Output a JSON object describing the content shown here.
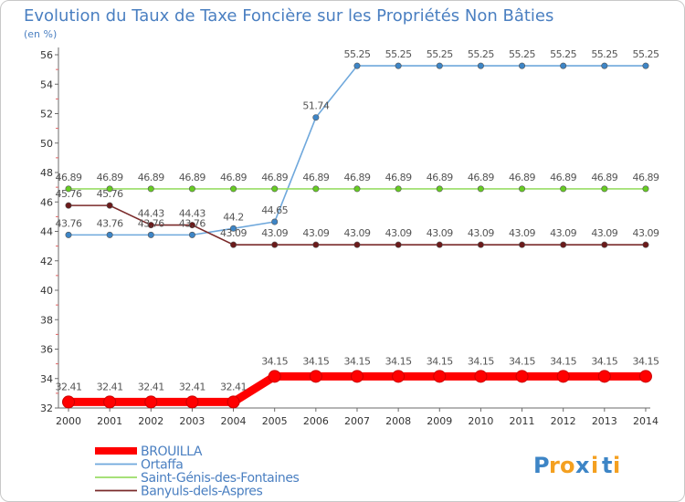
{
  "chart_data": {
    "type": "line",
    "title": "Evolution du Taux de Taxe Foncière sur les Propriétés Non Bâties",
    "subtitle": "(en %)",
    "xlabel": "",
    "ylabel": "",
    "ylim": [
      32,
      56
    ],
    "yticks": [
      32,
      34,
      36,
      38,
      40,
      42,
      44,
      46,
      48,
      50,
      52,
      54,
      56
    ],
    "categories": [
      "2000",
      "2001",
      "2002",
      "2003",
      "2004",
      "2005",
      "2006",
      "2007",
      "2008",
      "2009",
      "2010",
      "2011",
      "2012",
      "2013",
      "2014"
    ],
    "series": [
      {
        "name": "BROUILLA",
        "color": "#ff0000",
        "marker_color": "#ff0000",
        "highlight": true,
        "values": [
          32.41,
          32.41,
          32.41,
          32.41,
          32.41,
          34.15,
          34.15,
          34.15,
          34.15,
          34.15,
          34.15,
          34.15,
          34.15,
          34.15,
          34.15
        ],
        "labels": [
          "32.41",
          "32.41",
          "32.41",
          "32.41",
          "32.41",
          "34.15",
          "34.15",
          "34.15",
          "34.15",
          "34.15",
          "34.15",
          "34.15",
          "34.15",
          "34.15",
          "34.15"
        ]
      },
      {
        "name": "Ortaffa",
        "color": "#6fa8dc",
        "marker_color": "#3d85c6",
        "highlight": false,
        "values": [
          43.76,
          43.76,
          43.76,
          43.76,
          44.2,
          44.65,
          51.74,
          55.25,
          55.25,
          55.25,
          55.25,
          55.25,
          55.25,
          55.25,
          55.25
        ],
        "labels": [
          "43.76",
          "43.76",
          "43.76",
          "43.76",
          "44.2",
          "44.65",
          "51.74",
          "55.25",
          "55.25",
          "55.25",
          "55.25",
          "55.25",
          "55.25",
          "55.25",
          "55.25"
        ]
      },
      {
        "name": "Saint-Génis-des-Fontaines",
        "color": "#99dd66",
        "marker_color": "#66cc22",
        "highlight": false,
        "values": [
          46.89,
          46.89,
          46.89,
          46.89,
          46.89,
          46.89,
          46.89,
          46.89,
          46.89,
          46.89,
          46.89,
          46.89,
          46.89,
          46.89,
          46.89
        ],
        "labels": [
          "46.89",
          "46.89",
          "46.89",
          "46.89",
          "46.89",
          "46.89",
          "46.89",
          "46.89",
          "46.89",
          "46.89",
          "46.89",
          "46.89",
          "46.89",
          "46.89",
          "46.89"
        ]
      },
      {
        "name": "Banyuls-dels-Aspres",
        "color": "#7a2a2a",
        "marker_color": "#6b1a1a",
        "highlight": false,
        "values": [
          45.76,
          45.76,
          44.43,
          44.43,
          43.09,
          43.09,
          43.09,
          43.09,
          43.09,
          43.09,
          43.09,
          43.09,
          43.09,
          43.09,
          43.09
        ],
        "labels": [
          "45.76",
          "45.76",
          "44.43",
          "44.43",
          "43.09",
          "43.09",
          "43.09",
          "43.09",
          "43.09",
          "43.09",
          "43.09",
          "43.09",
          "43.09",
          "43.09",
          "43.09"
        ]
      }
    ],
    "legend_position": "bottom-left",
    "grid": false
  },
  "brand": {
    "letters": [
      "P",
      "r",
      "o",
      "x",
      "i",
      "t",
      "i"
    ],
    "colors": [
      "#3d85c6",
      "#f4a020",
      "#f4a020",
      "#3d85c6",
      "#f4a020",
      "#3d85c6",
      "#f4a020"
    ]
  },
  "colors": {
    "title": "#4a7fc1",
    "axis": "#6b6b6b",
    "tick_text": "#333333",
    "label_text": "#555555",
    "legend_text": "#4a7fc1"
  }
}
